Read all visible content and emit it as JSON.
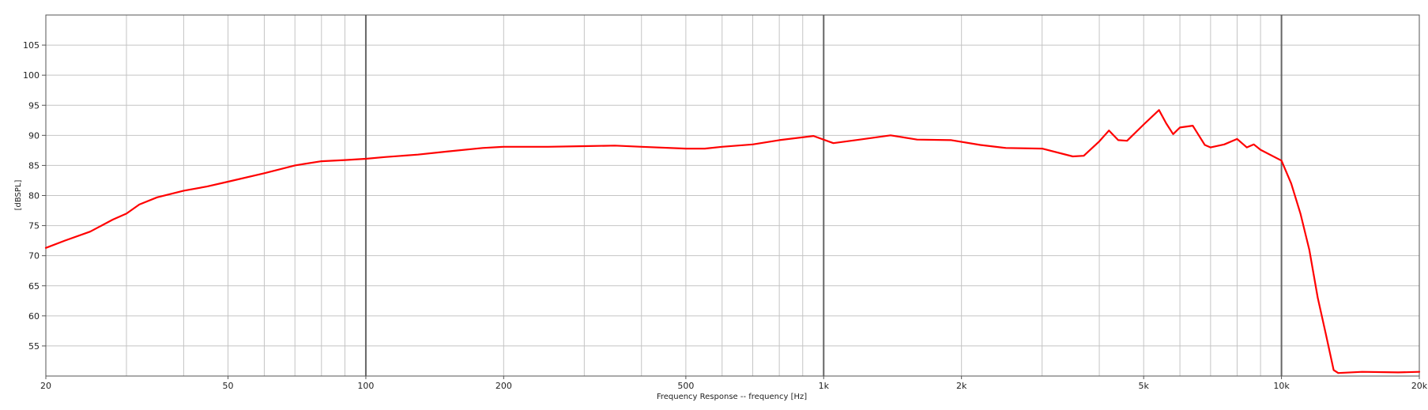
{
  "chart_data": {
    "type": "line",
    "title": "",
    "xlabel": "Frequency Response -- frequency [Hz]",
    "ylabel": "[dBSPL]",
    "x_scale": "log",
    "xlim": [
      20,
      20000
    ],
    "ylim": [
      50,
      110
    ],
    "grid": true,
    "x_major_ticks": [
      100,
      1000,
      10000
    ],
    "x_tick_values": [
      20,
      50,
      100,
      200,
      500,
      1000,
      2000,
      5000,
      10000,
      20000
    ],
    "x_tick_labels": [
      "20",
      "50",
      "100",
      "200",
      "500",
      "1k",
      "2k",
      "5k",
      "10k",
      "20k"
    ],
    "y_tick_values": [
      55,
      60,
      65,
      70,
      75,
      80,
      85,
      90,
      95,
      100,
      105
    ],
    "y_tick_labels": [
      "55",
      "60",
      "65",
      "70",
      "75",
      "80",
      "85",
      "90",
      "95",
      "100",
      "105"
    ],
    "series": [
      {
        "color": "#ff0000",
        "x": [
          20,
          22,
          25,
          28,
          30,
          32,
          35,
          40,
          45,
          50,
          60,
          70,
          80,
          90,
          100,
          110,
          130,
          150,
          180,
          200,
          250,
          300,
          350,
          400,
          500,
          550,
          600,
          700,
          800,
          950,
          1050,
          1200,
          1400,
          1600,
          1900,
          2200,
          2500,
          3000,
          3500,
          3700,
          4000,
          4200,
          4400,
          4600,
          5000,
          5400,
          5600,
          5800,
          6000,
          6400,
          6800,
          7000,
          7500,
          8000,
          8400,
          8700,
          9000,
          10000,
          10500,
          11000,
          11500,
          12000,
          12500,
          13000,
          13300,
          15000,
          18000,
          20000
        ],
        "y": [
          71.3,
          72.5,
          74,
          76,
          77,
          78.5,
          79.7,
          80.8,
          81.5,
          82.3,
          83.7,
          85,
          85.7,
          85.9,
          86.1,
          86.4,
          86.8,
          87.3,
          87.9,
          88.1,
          88.1,
          88.2,
          88.3,
          88.1,
          87.8,
          87.8,
          88.1,
          88.5,
          89.2,
          89.9,
          88.7,
          89.3,
          90,
          89.3,
          89.2,
          88.4,
          87.9,
          87.8,
          86.5,
          86.6,
          89,
          90.8,
          89.2,
          89.1,
          91.8,
          94.2,
          92,
          90.2,
          91.3,
          91.6,
          88.4,
          88,
          88.5,
          89.4,
          88,
          88.5,
          87.6,
          85.8,
          82,
          77,
          71,
          63,
          57,
          51,
          50.5,
          50.7,
          50.6,
          50.7
        ]
      }
    ]
  }
}
